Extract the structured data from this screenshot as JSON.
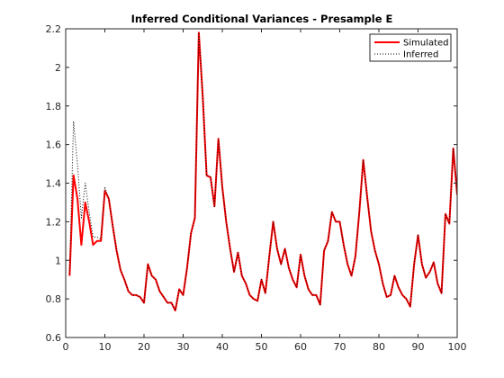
{
  "chart_data": {
    "type": "line",
    "title": "Inferred Conditional Variances - Presample E",
    "xlabel": "",
    "ylabel": "",
    "xlim": [
      0,
      100
    ],
    "ylim": [
      0.6,
      2.2
    ],
    "xticks": [
      0,
      10,
      20,
      30,
      40,
      50,
      60,
      70,
      80,
      90,
      100
    ],
    "yticks": [
      0.6,
      0.8,
      1,
      1.2,
      1.4,
      1.6,
      1.8,
      2,
      2.2
    ],
    "xtick_labels": [
      "0",
      "10",
      "20",
      "30",
      "40",
      "50",
      "60",
      "70",
      "80",
      "90",
      "100"
    ],
    "ytick_labels": [
      "0.6",
      "0.8",
      "1",
      "1.2",
      "1.4",
      "1.6",
      "1.8",
      "2",
      "2.2"
    ],
    "grid": false,
    "legend_position": "top-right",
    "series": [
      {
        "name": "Simulated",
        "color": "#ff0000",
        "style": "solid",
        "points": [
          [
            1,
            0.92
          ],
          [
            2,
            1.44
          ],
          [
            3,
            1.32
          ],
          [
            4,
            1.08
          ],
          [
            5,
            1.3
          ],
          [
            6,
            1.2
          ],
          [
            7,
            1.08
          ],
          [
            8,
            1.1
          ],
          [
            9,
            1.1
          ],
          [
            10,
            1.36
          ],
          [
            11,
            1.32
          ],
          [
            12,
            1.18
          ],
          [
            13,
            1.05
          ],
          [
            14,
            0.95
          ],
          [
            15,
            0.9
          ],
          [
            16,
            0.84
          ],
          [
            17,
            0.82
          ],
          [
            18,
            0.82
          ],
          [
            19,
            0.81
          ],
          [
            20,
            0.78
          ],
          [
            21,
            0.98
          ],
          [
            22,
            0.92
          ],
          [
            23,
            0.9
          ],
          [
            24,
            0.84
          ],
          [
            25,
            0.81
          ],
          [
            26,
            0.78
          ],
          [
            27,
            0.78
          ],
          [
            28,
            0.74
          ],
          [
            29,
            0.85
          ],
          [
            30,
            0.82
          ],
          [
            31,
            0.96
          ],
          [
            32,
            1.14
          ],
          [
            33,
            1.22
          ],
          [
            34,
            2.18
          ],
          [
            35,
            1.85
          ],
          [
            36,
            1.44
          ],
          [
            37,
            1.43
          ],
          [
            38,
            1.28
          ],
          [
            39,
            1.63
          ],
          [
            40,
            1.38
          ],
          [
            41,
            1.2
          ],
          [
            42,
            1.06
          ],
          [
            43,
            0.94
          ],
          [
            44,
            1.04
          ],
          [
            45,
            0.92
          ],
          [
            46,
            0.88
          ],
          [
            47,
            0.82
          ],
          [
            48,
            0.8
          ],
          [
            49,
            0.79
          ],
          [
            50,
            0.9
          ],
          [
            51,
            0.83
          ],
          [
            52,
            1.02
          ],
          [
            53,
            1.2
          ],
          [
            54,
            1.06
          ],
          [
            55,
            0.98
          ],
          [
            56,
            1.06
          ],
          [
            57,
            0.96
          ],
          [
            58,
            0.9
          ],
          [
            59,
            0.86
          ],
          [
            60,
            1.03
          ],
          [
            61,
            0.92
          ],
          [
            62,
            0.85
          ],
          [
            63,
            0.82
          ],
          [
            64,
            0.82
          ],
          [
            65,
            0.77
          ],
          [
            66,
            1.05
          ],
          [
            67,
            1.1
          ],
          [
            68,
            1.25
          ],
          [
            69,
            1.2
          ],
          [
            70,
            1.2
          ],
          [
            71,
            1.08
          ],
          [
            72,
            0.98
          ],
          [
            73,
            0.92
          ],
          [
            74,
            1.02
          ],
          [
            75,
            1.25
          ],
          [
            76,
            1.52
          ],
          [
            77,
            1.33
          ],
          [
            78,
            1.15
          ],
          [
            79,
            1.05
          ],
          [
            80,
            0.98
          ],
          [
            81,
            0.88
          ],
          [
            82,
            0.81
          ],
          [
            83,
            0.82
          ],
          [
            84,
            0.92
          ],
          [
            85,
            0.86
          ],
          [
            86,
            0.82
          ],
          [
            87,
            0.8
          ],
          [
            88,
            0.76
          ],
          [
            89,
            0.98
          ],
          [
            90,
            1.13
          ],
          [
            91,
            0.98
          ],
          [
            92,
            0.91
          ],
          [
            93,
            0.94
          ],
          [
            94,
            0.99
          ],
          [
            95,
            0.88
          ],
          [
            96,
            0.83
          ],
          [
            97,
            1.24
          ],
          [
            98,
            1.19
          ],
          [
            99,
            1.58
          ],
          [
            100,
            1.34
          ]
        ]
      },
      {
        "name": "Inferred",
        "color": "#000000",
        "style": "dotted",
        "points": [
          [
            1,
            0.93
          ],
          [
            2,
            1.72
          ],
          [
            3,
            1.5
          ],
          [
            4,
            1.22
          ],
          [
            5,
            1.4
          ],
          [
            6,
            1.25
          ],
          [
            7,
            1.12
          ],
          [
            8,
            1.12
          ],
          [
            9,
            1.11
          ],
          [
            10,
            1.38
          ],
          [
            11,
            1.32
          ],
          [
            12,
            1.18
          ],
          [
            13,
            1.05
          ],
          [
            14,
            0.95
          ],
          [
            15,
            0.9
          ],
          [
            16,
            0.84
          ],
          [
            17,
            0.82
          ],
          [
            18,
            0.82
          ],
          [
            19,
            0.81
          ],
          [
            20,
            0.78
          ],
          [
            21,
            0.98
          ],
          [
            22,
            0.92
          ],
          [
            23,
            0.9
          ],
          [
            24,
            0.84
          ],
          [
            25,
            0.81
          ],
          [
            26,
            0.78
          ],
          [
            27,
            0.78
          ],
          [
            28,
            0.74
          ],
          [
            29,
            0.85
          ],
          [
            30,
            0.82
          ],
          [
            31,
            0.96
          ],
          [
            32,
            1.14
          ],
          [
            33,
            1.22
          ],
          [
            34,
            2.18
          ],
          [
            35,
            1.85
          ],
          [
            36,
            1.44
          ],
          [
            37,
            1.43
          ],
          [
            38,
            1.28
          ],
          [
            39,
            1.63
          ],
          [
            40,
            1.38
          ],
          [
            41,
            1.2
          ],
          [
            42,
            1.06
          ],
          [
            43,
            0.94
          ],
          [
            44,
            1.04
          ],
          [
            45,
            0.92
          ],
          [
            46,
            0.88
          ],
          [
            47,
            0.82
          ],
          [
            48,
            0.8
          ],
          [
            49,
            0.79
          ],
          [
            50,
            0.9
          ],
          [
            51,
            0.83
          ],
          [
            52,
            1.02
          ],
          [
            53,
            1.2
          ],
          [
            54,
            1.06
          ],
          [
            55,
            0.98
          ],
          [
            56,
            1.06
          ],
          [
            57,
            0.96
          ],
          [
            58,
            0.9
          ],
          [
            59,
            0.86
          ],
          [
            60,
            1.03
          ],
          [
            61,
            0.92
          ],
          [
            62,
            0.85
          ],
          [
            63,
            0.82
          ],
          [
            64,
            0.82
          ],
          [
            65,
            0.77
          ],
          [
            66,
            1.05
          ],
          [
            67,
            1.1
          ],
          [
            68,
            1.25
          ],
          [
            69,
            1.2
          ],
          [
            70,
            1.2
          ],
          [
            71,
            1.08
          ],
          [
            72,
            0.98
          ],
          [
            73,
            0.92
          ],
          [
            74,
            1.02
          ],
          [
            75,
            1.25
          ],
          [
            76,
            1.52
          ],
          [
            77,
            1.33
          ],
          [
            78,
            1.15
          ],
          [
            79,
            1.05
          ],
          [
            80,
            0.98
          ],
          [
            81,
            0.88
          ],
          [
            82,
            0.81
          ],
          [
            83,
            0.82
          ],
          [
            84,
            0.92
          ],
          [
            85,
            0.86
          ],
          [
            86,
            0.82
          ],
          [
            87,
            0.8
          ],
          [
            88,
            0.76
          ],
          [
            89,
            0.98
          ],
          [
            90,
            1.13
          ],
          [
            91,
            0.98
          ],
          [
            92,
            0.91
          ],
          [
            93,
            0.94
          ],
          [
            94,
            0.99
          ],
          [
            95,
            0.88
          ],
          [
            96,
            0.83
          ],
          [
            97,
            1.24
          ],
          [
            98,
            1.19
          ],
          [
            99,
            1.58
          ],
          [
            100,
            1.34
          ]
        ]
      }
    ]
  }
}
